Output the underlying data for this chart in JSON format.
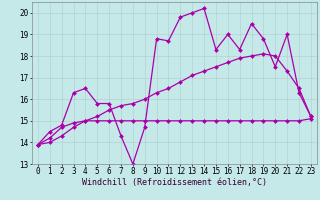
{
  "background_color": "#c5e8e8",
  "grid_color": "#b0cccc",
  "line_color": "#aa00aa",
  "marker": "D",
  "marker_size": 2.0,
  "line_width": 0.9,
  "xlim": [
    -0.5,
    23.5
  ],
  "ylim": [
    13,
    20.5
  ],
  "yticks": [
    13,
    14,
    15,
    16,
    17,
    18,
    19,
    20
  ],
  "xticks": [
    0,
    1,
    2,
    3,
    4,
    5,
    6,
    7,
    8,
    9,
    10,
    11,
    12,
    13,
    14,
    15,
    16,
    17,
    18,
    19,
    20,
    21,
    22,
    23
  ],
  "xlabel": "Windchill (Refroidissement éolien,°C)",
  "xlabel_fontsize": 6.0,
  "tick_fontsize": 5.5,
  "series1_y": [
    13.9,
    14.5,
    14.8,
    16.3,
    16.5,
    15.8,
    15.8,
    14.3,
    13.0,
    14.7,
    18.8,
    18.7,
    19.8,
    20.0,
    20.2,
    18.3,
    19.0,
    18.3,
    19.5,
    18.8,
    17.5,
    19.0,
    16.3,
    15.2
  ],
  "series2_y": [
    13.9,
    14.2,
    14.7,
    14.9,
    15.0,
    15.0,
    15.0,
    15.0,
    15.0,
    15.0,
    15.0,
    15.0,
    15.0,
    15.0,
    15.0,
    15.0,
    15.0,
    15.0,
    15.0,
    15.0,
    15.0,
    15.0,
    15.0,
    15.1
  ],
  "series3_y": [
    13.9,
    14.0,
    14.3,
    14.7,
    15.0,
    15.2,
    15.5,
    15.7,
    15.8,
    16.0,
    16.3,
    16.5,
    16.8,
    17.1,
    17.3,
    17.5,
    17.7,
    17.9,
    18.0,
    18.1,
    18.0,
    17.3,
    16.5,
    15.2
  ]
}
